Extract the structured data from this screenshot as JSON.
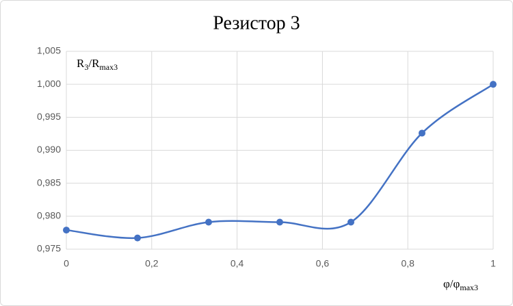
{
  "chart_data": {
    "type": "line",
    "title": "Резистор 3",
    "ylabel": [
      {
        "text": "R"
      },
      {
        "text": "3",
        "sub": true
      },
      {
        "text": "/R"
      },
      {
        "text": "max3",
        "sub": true
      }
    ],
    "xlabel": [
      {
        "text": "φ/φ"
      },
      {
        "text": "max3",
        "sub": true
      }
    ],
    "x": [
      0,
      0.1667,
      0.3333,
      0.5,
      0.6667,
      0.8333,
      1
    ],
    "series": [
      {
        "color": "#4472c4",
        "values": [
          0.9779,
          0.9767,
          0.9791,
          0.9791,
          0.9791,
          0.9926,
          1.0
        ]
      }
    ],
    "xlim": [
      0,
      1
    ],
    "xticks": [
      {
        "value": 0,
        "label": "0"
      },
      {
        "value": 0.2,
        "label": "0,2"
      },
      {
        "value": 0.4,
        "label": "0,4"
      },
      {
        "value": 0.6,
        "label": "0,6"
      },
      {
        "value": 0.8,
        "label": "0,8"
      },
      {
        "value": 1,
        "label": "1"
      }
    ],
    "ylim": [
      0.975,
      1.005
    ],
    "yticks": [
      {
        "value": 0.975,
        "label": "0,975"
      },
      {
        "value": 0.98,
        "label": "0,980"
      },
      {
        "value": 0.985,
        "label": "0,985"
      },
      {
        "value": 0.99,
        "label": "0,990"
      },
      {
        "value": 0.995,
        "label": "0,995"
      },
      {
        "value": 1.0,
        "label": "1,000"
      },
      {
        "value": 1.005,
        "label": "1,005"
      }
    ],
    "grid": true,
    "smooth": true
  }
}
